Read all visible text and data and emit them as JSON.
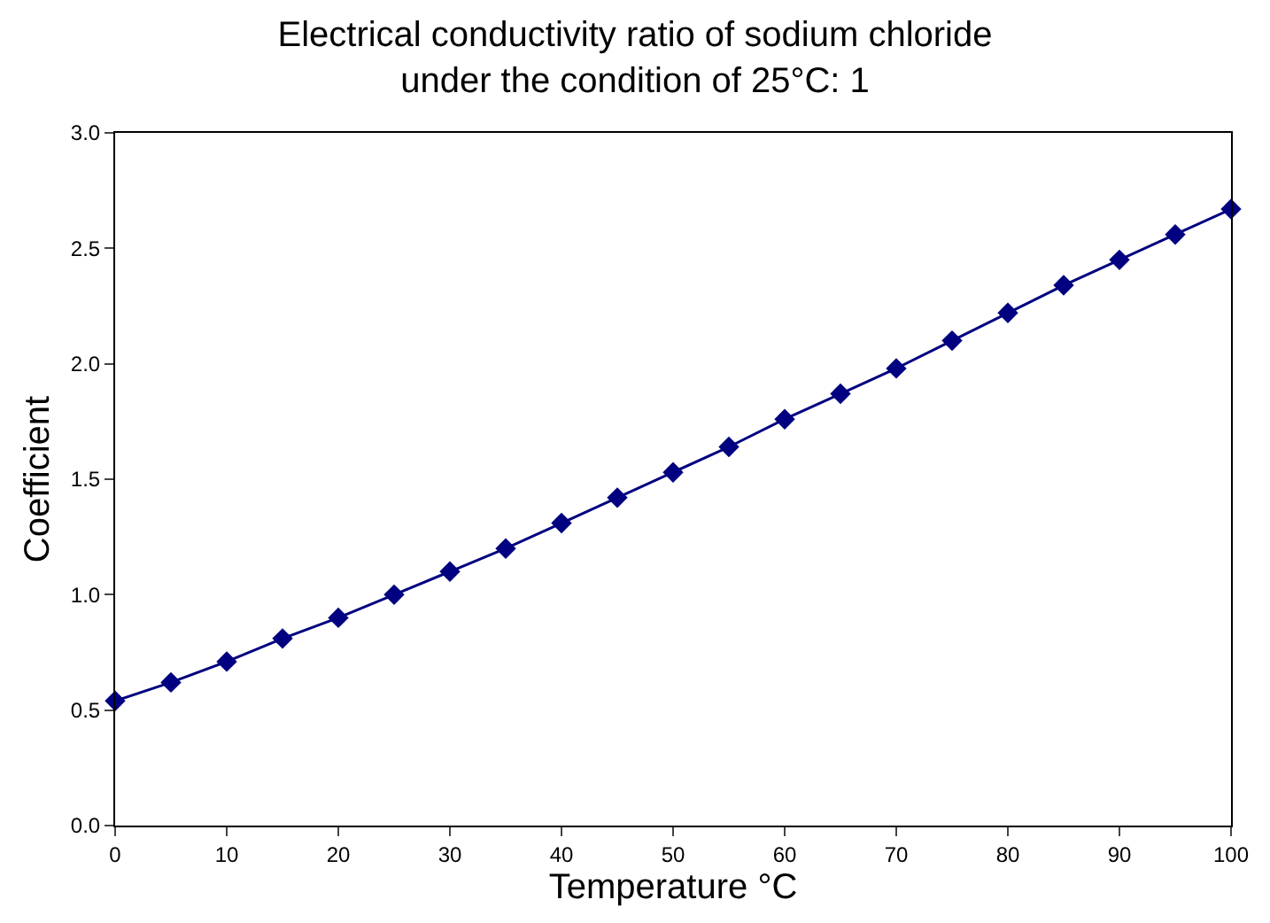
{
  "chart_data": {
    "type": "line",
    "title": "Electrical conductivity ratio of sodium chloride under the condition of 25°C: 1",
    "xlabel": "Temperature °C",
    "ylabel": "Coefficient",
    "x": [
      0,
      5,
      10,
      15,
      20,
      25,
      30,
      35,
      40,
      45,
      50,
      55,
      60,
      65,
      70,
      75,
      80,
      85,
      90,
      95,
      100
    ],
    "series": [
      {
        "color": "#000080",
        "values": [
          0.54,
          0.62,
          0.71,
          0.81,
          0.9,
          1.0,
          1.1,
          1.2,
          1.31,
          1.42,
          1.53,
          1.64,
          1.76,
          1.87,
          1.98,
          2.1,
          2.22,
          2.34,
          2.45,
          2.56,
          2.67
        ]
      }
    ],
    "xlim": [
      0,
      100
    ],
    "xticks": [
      0,
      10,
      20,
      30,
      40,
      50,
      60,
      70,
      80,
      90,
      100
    ],
    "ylim": [
      0,
      3
    ],
    "yticks": [
      {
        "value": 0,
        "label": "0.0"
      },
      {
        "value": 0.5,
        "label": "0.5"
      },
      {
        "value": 1,
        "label": "1.0"
      },
      {
        "value": 1.5,
        "label": "1.5"
      },
      {
        "value": 2,
        "label": "2.0"
      },
      {
        "value": 2.5,
        "label": "2.5"
      },
      {
        "value": 3,
        "label": "3.0"
      }
    ],
    "marker": "diamond",
    "line_style": "solid"
  }
}
